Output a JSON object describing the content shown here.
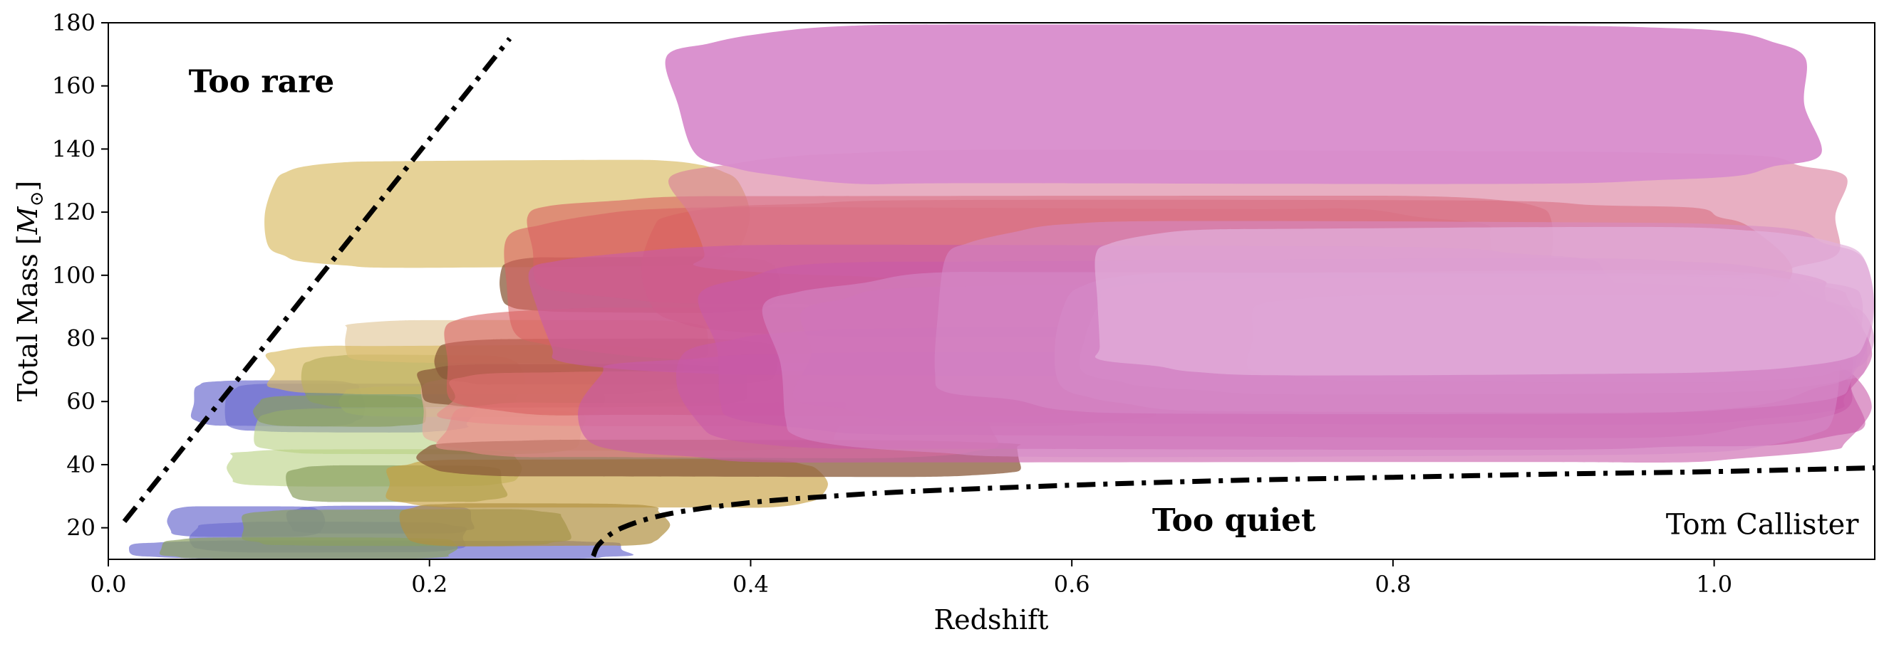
{
  "chart_data": {
    "type": "area",
    "title": "",
    "xlabel": "Redshift",
    "ylabel": "Total Mass [",
    "ylabel_symbol": "M",
    "ylabel_sub": "⊙",
    "ylabel_close": "]",
    "xlim": [
      0.0,
      1.1
    ],
    "ylim": [
      10,
      180
    ],
    "xticks": [
      0.0,
      0.2,
      0.4,
      0.6,
      0.8,
      1.0
    ],
    "yticks": [
      20,
      40,
      60,
      80,
      100,
      120,
      140,
      160,
      180
    ],
    "xtick_labels": [
      "0.0",
      "0.2",
      "0.4",
      "0.6",
      "0.8",
      "1.0"
    ],
    "ytick_labels": [
      "20",
      "40",
      "60",
      "80",
      "100",
      "120",
      "140",
      "160",
      "180"
    ],
    "grid": false,
    "annotations": [
      {
        "text": "Too rare",
        "x": 0.05,
        "y": 158
      },
      {
        "text": "Too quiet",
        "x": 0.65,
        "y": 19
      },
      {
        "text": "Tom Callister",
        "x": 1.09,
        "y": 18
      }
    ],
    "boundaries": [
      {
        "name": "too-rare-boundary",
        "style": "dash-dot",
        "points": [
          [
            0.01,
            22
          ],
          [
            0.25,
            175
          ]
        ]
      },
      {
        "name": "too-quiet-boundary",
        "style": "dash-dot",
        "points": [
          [
            0.302,
            11
          ],
          [
            0.306,
            15
          ],
          [
            0.32,
            20
          ],
          [
            0.35,
            24.5
          ],
          [
            0.4,
            28
          ],
          [
            0.45,
            30
          ],
          [
            0.5,
            31.5
          ],
          [
            0.6,
            33.5
          ],
          [
            0.7,
            35
          ],
          [
            0.8,
            36
          ],
          [
            0.9,
            37
          ],
          [
            1.0,
            37.8
          ],
          [
            1.1,
            39
          ]
        ]
      }
    ],
    "regions": [
      {
        "name": "event-1",
        "color": "#6f6fd0",
        "opacity": 0.7,
        "z": [
          0.012,
          0.33
        ],
        "m": [
          10,
          16
        ]
      },
      {
        "name": "event-2",
        "color": "#6f6fd0",
        "opacity": 0.7,
        "z": [
          0.035,
          0.135
        ],
        "m": [
          17,
          27
        ]
      },
      {
        "name": "event-3",
        "color": "#6f6fd0",
        "opacity": 0.7,
        "z": [
          0.05,
          0.225
        ],
        "m": [
          12,
          22
        ]
      },
      {
        "name": "event-4",
        "color": "#6f6fd0",
        "opacity": 0.7,
        "z": [
          0.05,
          0.16
        ],
        "m": [
          52,
          67
        ]
      },
      {
        "name": "event-5",
        "color": "#6f6fd0",
        "opacity": 0.7,
        "z": [
          0.07,
          0.23
        ],
        "m": [
          50,
          66
        ]
      },
      {
        "name": "event-6",
        "color": "#6f6fd0",
        "opacity": 0.7,
        "z": [
          0.11,
          0.23
        ],
        "m": [
          18,
          27
        ]
      },
      {
        "name": "event-7",
        "color": "#8aa060",
        "opacity": 0.7,
        "z": [
          0.03,
          0.22
        ],
        "m": [
          10,
          17
        ]
      },
      {
        "name": "event-8",
        "color": "#8aa060",
        "opacity": 0.7,
        "z": [
          0.08,
          0.29
        ],
        "m": [
          14,
          26
        ]
      },
      {
        "name": "event-9",
        "color": "#b8d080",
        "opacity": 0.6,
        "z": [
          0.07,
          0.26
        ],
        "m": [
          33,
          45
        ]
      },
      {
        "name": "event-10",
        "color": "#b8d080",
        "opacity": 0.6,
        "z": [
          0.09,
          0.3
        ],
        "m": [
          43,
          58
        ]
      },
      {
        "name": "event-11",
        "color": "#b8d080",
        "opacity": 0.6,
        "z": [
          0.14,
          0.31
        ],
        "m": [
          55,
          65
        ]
      },
      {
        "name": "event-12",
        "color": "#8aa060",
        "opacity": 0.7,
        "z": [
          0.09,
          0.2
        ],
        "m": [
          52,
          62
        ]
      },
      {
        "name": "event-13",
        "color": "#8aa060",
        "opacity": 0.7,
        "z": [
          0.11,
          0.25
        ],
        "m": [
          28,
          40
        ]
      },
      {
        "name": "event-14",
        "color": "#8aa060",
        "opacity": 0.7,
        "z": [
          0.12,
          0.26
        ],
        "m": [
          58,
          75
        ]
      },
      {
        "name": "event-15",
        "color": "#d8ba60",
        "opacity": 0.65,
        "z": [
          0.095,
          0.4
        ],
        "m": [
          102,
          137
        ]
      },
      {
        "name": "event-16",
        "color": "#e2c89a",
        "opacity": 0.65,
        "z": [
          0.14,
          0.38
        ],
        "m": [
          72,
          86
        ]
      },
      {
        "name": "event-17",
        "color": "#d8ba60",
        "opacity": 0.65,
        "z": [
          0.095,
          0.36
        ],
        "m": [
          62,
          78
        ]
      },
      {
        "name": "event-18",
        "color": "#c8a040",
        "opacity": 0.65,
        "z": [
          0.17,
          0.45
        ],
        "m": [
          26,
          42
        ]
      },
      {
        "name": "event-19",
        "color": "#b09040",
        "opacity": 0.7,
        "z": [
          0.18,
          0.35
        ],
        "m": [
          14,
          28
        ]
      },
      {
        "name": "event-20",
        "color": "#e8ae9c",
        "opacity": 0.65,
        "z": [
          0.19,
          0.46
        ],
        "m": [
          44,
          70
        ]
      },
      {
        "name": "event-21",
        "color": "#8a5a3a",
        "opacity": 0.75,
        "z": [
          0.19,
          0.4
        ],
        "m": [
          58,
          72
        ]
      },
      {
        "name": "event-22",
        "color": "#8a5a3a",
        "opacity": 0.75,
        "z": [
          0.19,
          0.58
        ],
        "m": [
          36,
          48
        ]
      },
      {
        "name": "event-23",
        "color": "#8a5a3a",
        "opacity": 0.75,
        "z": [
          0.2,
          0.42
        ],
        "m": [
          65,
          80
        ]
      },
      {
        "name": "event-24",
        "color": "#8a5a3a",
        "opacity": 0.75,
        "z": [
          0.24,
          0.42
        ],
        "m": [
          88,
          106
        ]
      },
      {
        "name": "event-25",
        "color": "#e88a88",
        "opacity": 0.6,
        "z": [
          0.2,
          0.66
        ],
        "m": [
          52,
          70
        ]
      },
      {
        "name": "event-26",
        "color": "#e88a88",
        "opacity": 0.6,
        "z": [
          0.2,
          0.56
        ],
        "m": [
          42,
          60
        ]
      },
      {
        "name": "event-27",
        "color": "#d86060",
        "opacity": 0.6,
        "z": [
          0.2,
          0.68
        ],
        "m": [
          55,
          90
        ]
      },
      {
        "name": "event-28",
        "color": "#d86060",
        "opacity": 0.6,
        "z": [
          0.24,
          0.88
        ],
        "m": [
          72,
          122
        ]
      },
      {
        "name": "event-29",
        "color": "#d86060",
        "opacity": 0.6,
        "z": [
          0.25,
          0.92
        ],
        "m": [
          90,
          126
        ]
      },
      {
        "name": "event-30",
        "color": "#d86060",
        "opacity": 0.6,
        "z": [
          0.31,
          1.05
        ],
        "m": [
          80,
          124
        ]
      },
      {
        "name": "event-31",
        "color": "#d87a9a",
        "opacity": 0.6,
        "z": [
          0.34,
          1.1
        ],
        "m": [
          98,
          140
        ]
      },
      {
        "name": "event-32",
        "color": "#c85aa8",
        "opacity": 0.6,
        "z": [
          0.25,
          0.95
        ],
        "m": [
          68,
          110
        ]
      },
      {
        "name": "event-33",
        "color": "#c85aa8",
        "opacity": 0.6,
        "z": [
          0.28,
          1.1
        ],
        "m": [
          40,
          76
        ]
      },
      {
        "name": "event-34",
        "color": "#c85aa8",
        "opacity": 0.6,
        "z": [
          0.34,
          1.1
        ],
        "m": [
          44,
          84
        ]
      },
      {
        "name": "event-35",
        "color": "#c85aa8",
        "opacity": 0.6,
        "z": [
          0.36,
          1.1
        ],
        "m": [
          48,
          106
        ]
      },
      {
        "name": "event-36",
        "color": "#c85aa8",
        "opacity": 0.6,
        "z": [
          0.42,
          1.1
        ],
        "m": [
          52,
          98
        ]
      },
      {
        "name": "event-37",
        "color": "#d68ac8",
        "opacity": 0.55,
        "z": [
          0.4,
          1.1
        ],
        "m": [
          42,
          102
        ]
      },
      {
        "name": "event-38",
        "color": "#d68ac8",
        "opacity": 0.55,
        "z": [
          0.5,
          1.1
        ],
        "m": [
          56,
          118
        ]
      },
      {
        "name": "event-39",
        "color": "#d68ac8",
        "opacity": 0.55,
        "z": [
          0.58,
          1.1
        ],
        "m": [
          56,
          102
        ]
      },
      {
        "name": "event-40",
        "color": "#d68ac8",
        "opacity": 0.55,
        "z": [
          0.6,
          1.1
        ],
        "m": [
          62,
          100
        ]
      },
      {
        "name": "event-41",
        "color": "#d68ac8",
        "opacity": 0.55,
        "z": [
          0.7,
          1.1
        ],
        "m": [
          66,
          94
        ]
      },
      {
        "name": "event-42",
        "color": "#e2b0dc",
        "opacity": 0.7,
        "z": [
          0.6,
          1.1
        ],
        "m": [
          68,
          116
        ]
      },
      {
        "name": "event-43",
        "color": "#d88ccc",
        "opacity": 0.95,
        "z": [
          0.34,
          1.08
        ],
        "m": [
          128,
          180
        ]
      }
    ]
  }
}
